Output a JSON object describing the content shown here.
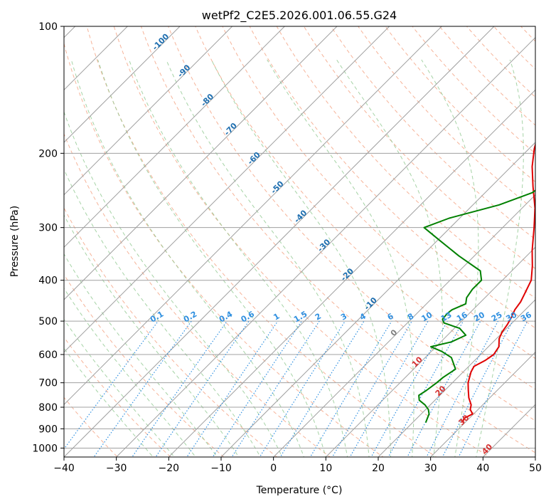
{
  "chart_data": {
    "type": "line",
    "title": "wetPf2_C2E5.2026.001.06.55.G24",
    "xlabel": "Temperature (°C)",
    "ylabel": "Pressure (hPa)",
    "xlim": [
      -40,
      50
    ],
    "ylim": [
      1050,
      100
    ],
    "x_ticks": [
      -40,
      -30,
      -20,
      -10,
      0,
      10,
      20,
      30,
      40,
      50
    ],
    "x_tick_labels": [
      "−40",
      "−30",
      "−20",
      "−10",
      "0",
      "10",
      "20",
      "30",
      "40",
      "50"
    ],
    "y_ticks": [
      100,
      200,
      300,
      400,
      500,
      600,
      700,
      800,
      900,
      1000
    ],
    "y_tick_labels": [
      "100",
      "200",
      "300",
      "400",
      "500",
      "600",
      "700",
      "800",
      "900",
      "1000"
    ],
    "series": [
      {
        "name": "Temperature",
        "color": "#e00000",
        "points": [
          [
            29.5,
            870
          ],
          [
            29.0,
            850
          ],
          [
            29.8,
            830
          ],
          [
            28.5,
            810
          ],
          [
            27.8,
            790
          ],
          [
            26.0,
            760
          ],
          [
            24.5,
            730
          ],
          [
            23.0,
            700
          ],
          [
            21.5,
            660
          ],
          [
            21.0,
            640
          ],
          [
            22.0,
            620
          ],
          [
            22.5,
            600
          ],
          [
            22.0,
            575
          ],
          [
            20.5,
            550
          ],
          [
            19.8,
            530
          ],
          [
            19.4,
            510
          ],
          [
            18.8,
            490
          ],
          [
            18.0,
            470
          ],
          [
            17.6,
            450
          ],
          [
            16.8,
            430
          ],
          [
            15.5,
            400
          ],
          [
            13.0,
            370
          ],
          [
            10.0,
            340
          ],
          [
            6.0,
            300
          ],
          [
            2.5,
            270
          ],
          [
            -2.0,
            240
          ],
          [
            -6.0,
            215
          ],
          [
            -9.0,
            195
          ],
          [
            -11.0,
            180
          ],
          [
            -12.5,
            165
          ],
          [
            -14.5,
            150
          ],
          [
            -15.5,
            140
          ],
          [
            -15.0,
            133
          ],
          [
            -12.0,
            127
          ],
          [
            -10.0,
            122
          ],
          [
            -9.0,
            118
          ],
          [
            -9.5,
            112
          ],
          [
            -9.5,
            106
          ],
          [
            -8.5,
            100
          ]
        ]
      },
      {
        "name": "Dewpoint",
        "color": "#008000",
        "points": [
          [
            22.5,
            870
          ],
          [
            22.0,
            850
          ],
          [
            21.5,
            830
          ],
          [
            20.5,
            810
          ],
          [
            19.0,
            790
          ],
          [
            17.0,
            770
          ],
          [
            16.0,
            750
          ],
          [
            16.5,
            730
          ],
          [
            17.0,
            700
          ],
          [
            17.2,
            680
          ],
          [
            18.0,
            650
          ],
          [
            15.0,
            610
          ],
          [
            12.0,
            590
          ],
          [
            9.0,
            575
          ],
          [
            12.0,
            560
          ],
          [
            13.5,
            540
          ],
          [
            11.0,
            520
          ],
          [
            7.0,
            505
          ],
          [
            6.0,
            495
          ],
          [
            5.8,
            480
          ],
          [
            6.0,
            470
          ],
          [
            7.5,
            455
          ],
          [
            6.5,
            440
          ],
          [
            6.0,
            420
          ],
          [
            6.0,
            400
          ],
          [
            4.0,
            380
          ],
          [
            -3.0,
            350
          ],
          [
            -10.0,
            320
          ],
          [
            -15.0,
            300
          ],
          [
            -12.0,
            285
          ],
          [
            -5.0,
            265
          ],
          [
            -1.0,
            248
          ],
          [
            0.0,
            230
          ],
          [
            -0.5,
            210
          ],
          [
            -1.0,
            190
          ],
          [
            -2.0,
            175
          ],
          [
            -3.0,
            165
          ],
          [
            -6.0,
            150
          ],
          [
            -7.0,
            140
          ],
          [
            -5.0,
            131
          ],
          [
            -3.5,
            124
          ],
          [
            -2.0,
            117
          ],
          [
            0.0,
            112
          ],
          [
            0.8,
            106
          ],
          [
            1.5,
            100
          ]
        ]
      }
    ],
    "mixing_ratio_labels": [
      "0.1",
      "0.2",
      "0.4",
      "0.6",
      "1",
      "1.5",
      "2",
      "3",
      "4",
      "6",
      "8",
      "10",
      "13",
      "16",
      "20",
      "25",
      "30",
      "36"
    ],
    "dry_adiabat_labels": [
      "-100",
      "-90",
      "-80",
      "-70",
      "-60",
      "-50",
      "-40",
      "-30",
      "-20",
      "-10",
      "0",
      "10",
      "20",
      "30",
      "40"
    ],
    "reference_line_colors": {
      "isotherm": "#a0a0a0",
      "dry_adiabat": "#f4a080",
      "moist_adiabat": "#90c890",
      "mixing_ratio": "#3090e0",
      "adiabat_label_cold": "#1f6fb0",
      "adiabat_label_warm": "#d63030",
      "zero_label": "#808080"
    }
  }
}
